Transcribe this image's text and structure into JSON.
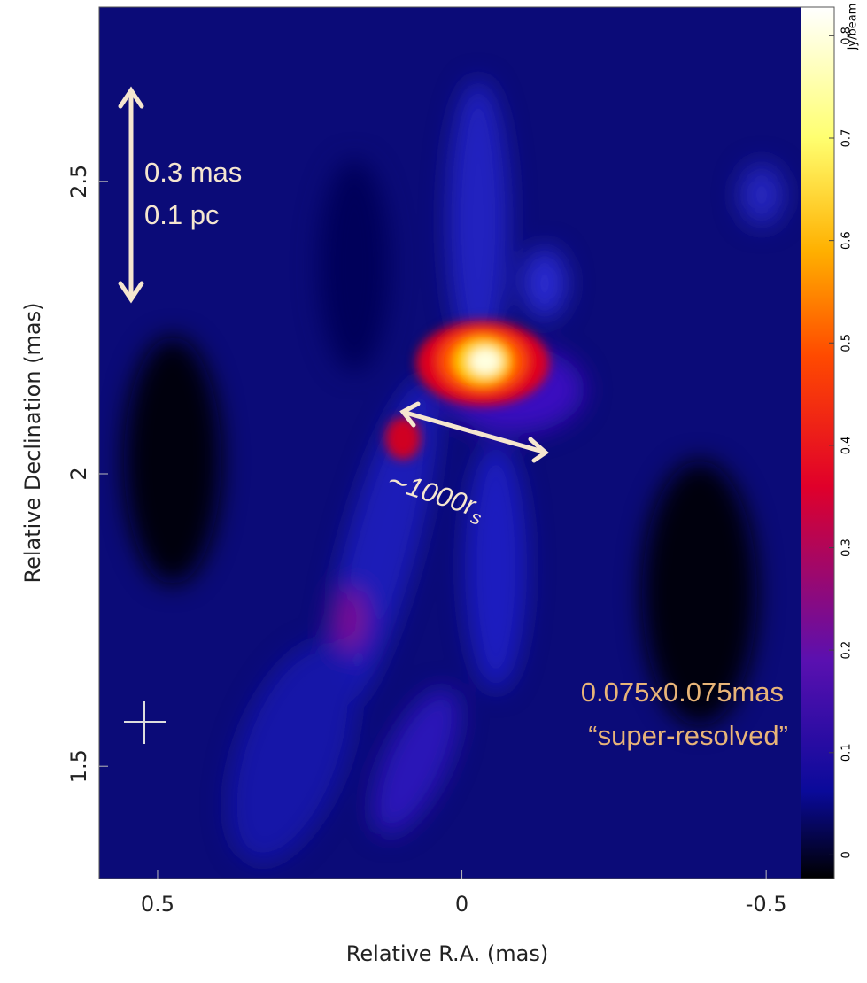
{
  "chart_data": {
    "type": "image",
    "x_label": "Relative R.A. (mas)",
    "y_label": "Relative Declination (mas)",
    "xlim": [
      0.596,
      -0.558
    ],
    "xticks": [
      0.5,
      0,
      -0.5
    ],
    "ylim": [
      1.308,
      2.798
    ],
    "yticks": [
      1.5,
      2,
      2.5
    ],
    "colorbar": {
      "label": "Jy/beam",
      "lim": [
        -0.023,
        0.828
      ],
      "ticks": [
        0,
        0.1,
        0.2,
        0.3,
        0.4,
        0.5,
        0.6,
        0.7,
        0.8
      ]
    },
    "annotations": {
      "scale_mas": "0.3 mas",
      "scale_pc": "0.1 pc",
      "size": {
        "text": "∼1000r",
        "subscript": "s"
      },
      "beam": "0.075x0.075mas",
      "beam_note": "“super-resolved”"
    }
  }
}
